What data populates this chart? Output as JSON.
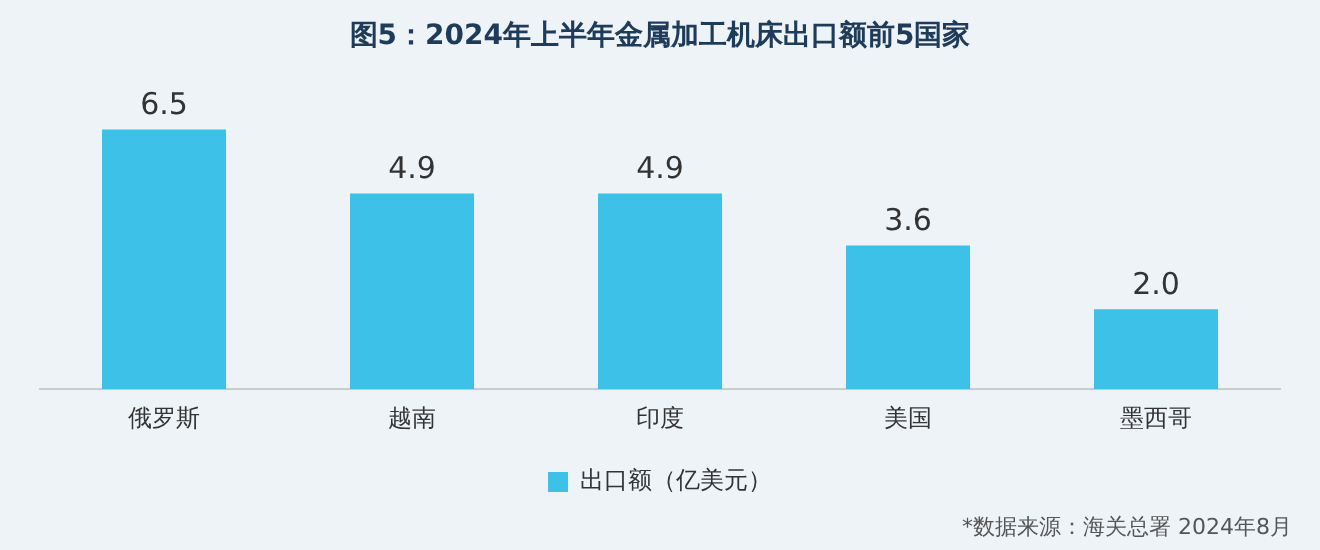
{
  "chart_data": {
    "type": "bar",
    "title": "图5：2024年上半年金属加工机床出口额前5国家",
    "categories": [
      "俄罗斯",
      "越南",
      "印度",
      "美国",
      "墨西哥"
    ],
    "series": [
      {
        "name": "出口额（亿美元）",
        "color": "#3ec1e8",
        "values": [
          6.5,
          4.9,
          4.9,
          3.6,
          2.0
        ],
        "value_labels": [
          "6.5",
          "4.9",
          "4.9",
          "3.6",
          "2.0"
        ]
      }
    ],
    "legend": "bottom",
    "grid": false,
    "tick_labels": "x",
    "annotations": [
      "*数据来源：海关总署  2024年8月"
    ]
  }
}
